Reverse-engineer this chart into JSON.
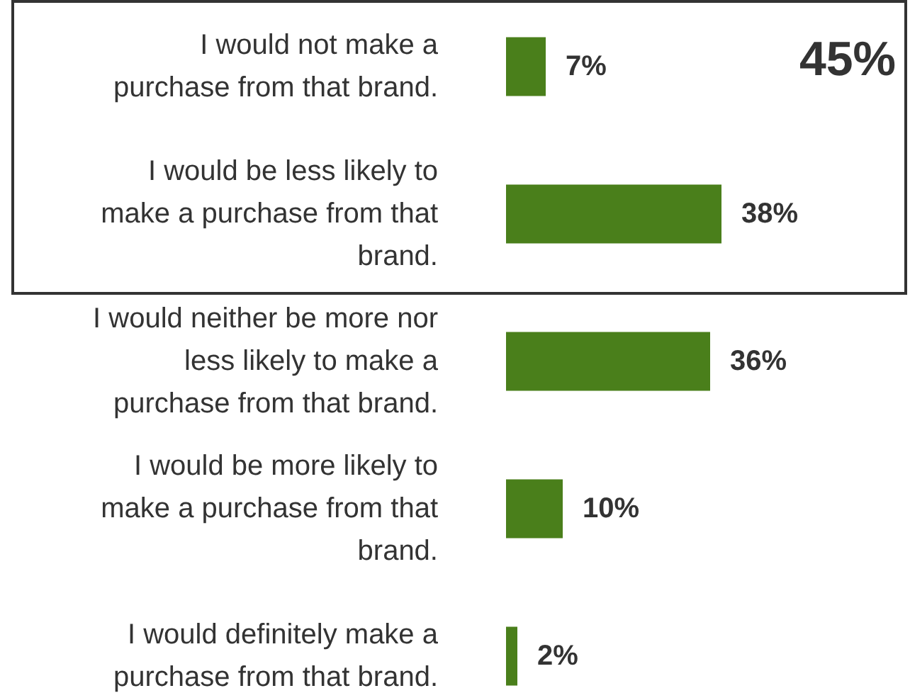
{
  "chart_data": {
    "type": "bar",
    "orientation": "horizontal",
    "relative": false,
    "data_labels": true,
    "categories": [
      "I would not make a purchase from that brand.",
      "I would be less likely to make a purchase from that brand.",
      "I would neither be more nor less likely to make a purchase from that brand.",
      "I would be more likely to make a purchase from that brand.",
      "I would definitely make a purchase from that brand."
    ],
    "values": [
      7,
      38,
      36,
      10,
      2
    ],
    "value_labels": [
      "7%",
      "38%",
      "36%",
      "10%",
      "2%"
    ],
    "color": "#4a7f1b",
    "annotations": [
      "45%"
    ]
  }
}
